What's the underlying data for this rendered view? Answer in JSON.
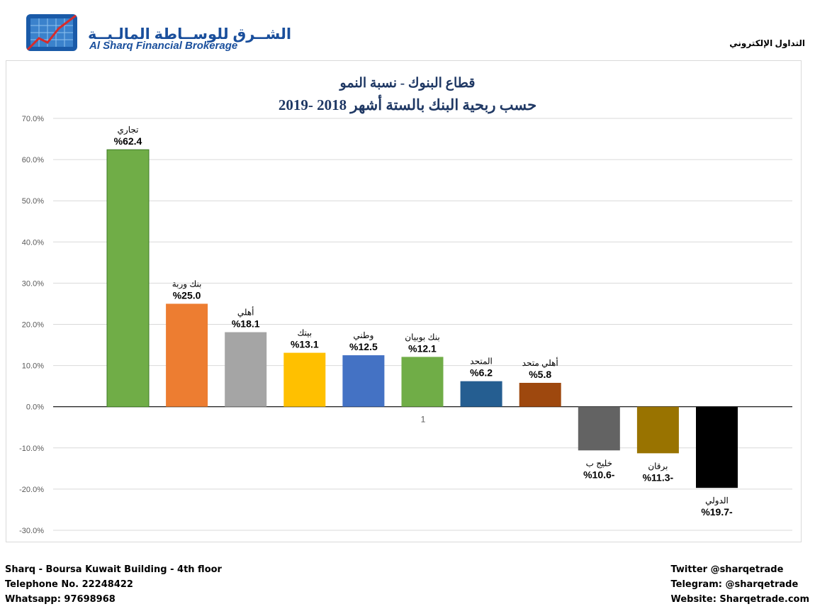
{
  "header": {
    "brand_ar": "الشــرق للوســاطة المالـيــة",
    "brand_en": "Al Sharq Financial Brokerage",
    "e_trading": "التداول الإلكتروني"
  },
  "footer": {
    "address": "Sharq - Boursa Kuwait Building - 4th floor",
    "telephone": "Telephone No. 22248422",
    "whatsapp": "Whatsapp: 97698968",
    "twitter": "Twitter @sharqetrade",
    "telegram": "Telegram: @sharqetrade",
    "website": "Website: Sharqetrade.com"
  },
  "chart_data": {
    "type": "bar",
    "title": "قطاع البنوك - نسبة النمو",
    "subtitle": "حسب ربحية البنك بالستة أشهر 2018 -2019",
    "categories": [
      "1"
    ],
    "ylim": [
      -30,
      70
    ],
    "yticks": [
      "70.0%",
      "60.0%",
      "50.0%",
      "40.0%",
      "30.0%",
      "20.0%",
      "10.0%",
      "0.0%",
      "-10.0%",
      "-20.0%",
      "-30.0%"
    ],
    "grid": true,
    "series": [
      {
        "name": "تجاري",
        "value": 62.4,
        "label": "%62.4",
        "color": "#70ad47"
      },
      {
        "name": "بنك وربة",
        "value": 25.0,
        "label": "%25.0",
        "color": "#ed7d31"
      },
      {
        "name": "أهلي",
        "value": 18.1,
        "label": "%18.1",
        "color": "#a5a5a5"
      },
      {
        "name": "بيتك",
        "value": 13.1,
        "label": "%13.1",
        "color": "#ffc000"
      },
      {
        "name": "وطني",
        "value": 12.5,
        "label": "%12.5",
        "color": "#4472c4"
      },
      {
        "name": "بنك بوبيان",
        "value": 12.1,
        "label": "%12.1",
        "color": "#70ad47"
      },
      {
        "name": "المتحد",
        "value": 6.2,
        "label": "%6.2",
        "color": "#255e91"
      },
      {
        "name": "أهلي متحد",
        "value": 5.8,
        "label": "%5.8",
        "color": "#9e480e"
      },
      {
        "name": "خليج ب",
        "value": -10.6,
        "label": "%10.6-",
        "color": "#636363"
      },
      {
        "name": "برقان",
        "value": -11.3,
        "label": "%11.3-",
        "color": "#997300"
      },
      {
        "name": "الدولي",
        "value": -19.7,
        "label": "%19.7-",
        "color": "#000000"
      }
    ]
  }
}
